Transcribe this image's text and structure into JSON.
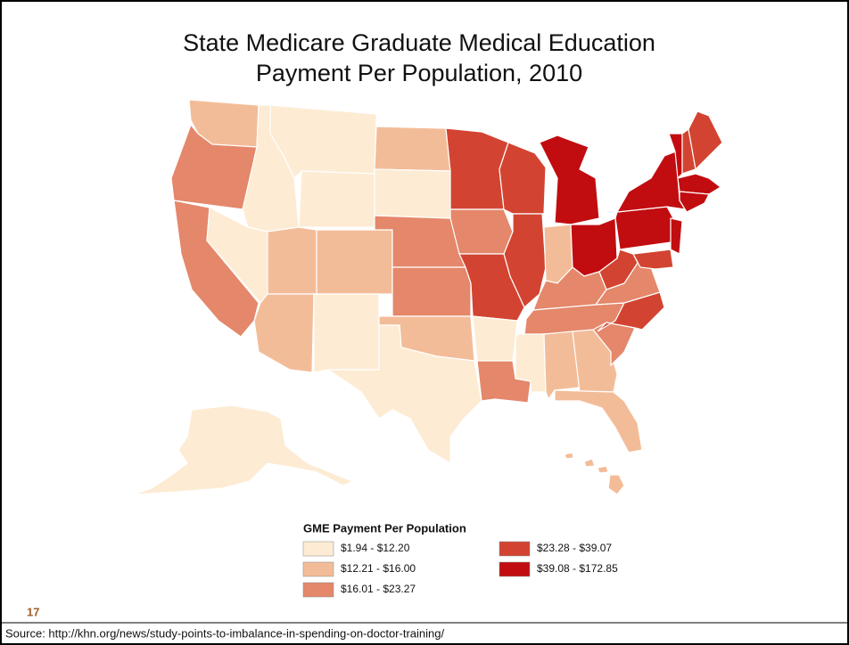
{
  "title": [
    "State Medicare Graduate Medical Education",
    "Payment Per Population, 2010"
  ],
  "legend": {
    "title": "GME Payment Per Population",
    "items": [
      {
        "label": "$1.94 - $12.20",
        "color": "#fdebd3"
      },
      {
        "label": "$12.21 - $16.00",
        "color": "#f3bc98"
      },
      {
        "label": "$16.01 - $23.27",
        "color": "#e4876a"
      },
      {
        "label": "$23.28 - $39.07",
        "color": "#d24431"
      },
      {
        "label": "$39.08 - $172.85",
        "color": "#c10d10"
      }
    ]
  },
  "slide_number": "17",
  "source": "Source: http://khn.org/news/study-points-to-imbalance-in-spending-on-doctor-training/"
}
